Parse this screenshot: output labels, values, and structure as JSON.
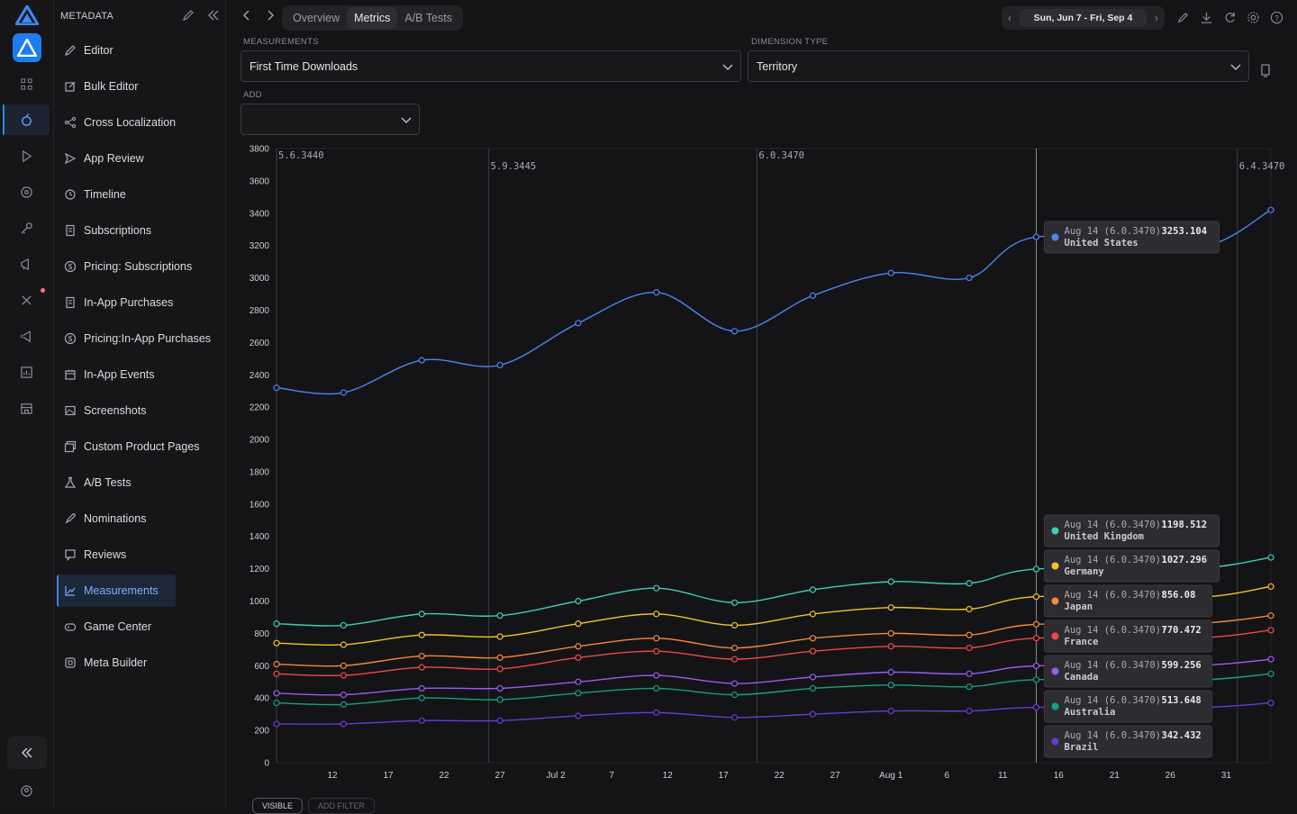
{
  "sidebar": {
    "title": "METADATA",
    "items": [
      {
        "label": "Editor",
        "icon": "pencil-icon"
      },
      {
        "label": "Bulk Editor",
        "icon": "edit-square-icon"
      },
      {
        "label": "Cross Localization",
        "icon": "share-icon"
      },
      {
        "label": "App Review",
        "icon": "send-icon"
      },
      {
        "label": "Timeline",
        "icon": "history-icon"
      },
      {
        "label": "Subscriptions",
        "icon": "receipt-icon"
      },
      {
        "label": "Pricing: Subscriptions",
        "icon": "dollar-icon"
      },
      {
        "label": "In-App Purchases",
        "icon": "receipt-icon"
      },
      {
        "label": "Pricing:In-App Purchases",
        "icon": "dollar-icon"
      },
      {
        "label": "In-App Events",
        "icon": "calendar-icon"
      },
      {
        "label": "Screenshots",
        "icon": "image-icon"
      },
      {
        "label": "Custom Product Pages",
        "icon": "images-icon"
      },
      {
        "label": "A/B Tests",
        "icon": "flask-icon"
      },
      {
        "label": "Nominations",
        "icon": "rocket-icon"
      },
      {
        "label": "Reviews",
        "icon": "review-icon"
      },
      {
        "label": "Measurements",
        "icon": "chart-icon",
        "active": true
      },
      {
        "label": "Game Center",
        "icon": "gamepad-icon"
      },
      {
        "label": "Meta Builder",
        "icon": "cube-icon"
      }
    ]
  },
  "topbar": {
    "tabs": [
      {
        "label": "Overview"
      },
      {
        "label": "Metrics",
        "active": true
      },
      {
        "label": "A/B Tests"
      }
    ],
    "date_range": "Sun, Jun 7 - Fri, Sep 4"
  },
  "filters": {
    "measurements_label": "MEASUREMENTS",
    "measurements_value": "First Time Downloads",
    "dimension_label": "DIMENSION TYPE",
    "dimension_value": "Territory",
    "add_label": "ADD",
    "add_value": ""
  },
  "bottom": {
    "visible_label": "VISIBLE",
    "add_filter_label": "ADD FILTER"
  },
  "chart_data": {
    "type": "line",
    "ylim": [
      0,
      3800
    ],
    "yticks": [
      0,
      200,
      400,
      600,
      800,
      1000,
      1200,
      1400,
      1600,
      1800,
      2000,
      2200,
      2400,
      2600,
      2800,
      3000,
      3200,
      3400,
      3600,
      3800
    ],
    "x_start": "Jun 7",
    "x_end": "Sep 4",
    "x_tick_labels": [
      "12",
      "17",
      "22",
      "27",
      "Jul 2",
      "7",
      "12",
      "17",
      "22",
      "27",
      "Aug 1",
      "6",
      "11",
      "16",
      "21",
      "26",
      "31"
    ],
    "versions": [
      {
        "label": "5.6.3440",
        "date": "Jun 7"
      },
      {
        "label": "5.9.3445",
        "date": "Jun 26"
      },
      {
        "label": "6.0.3470",
        "date": "Jul 20"
      },
      {
        "label": "6.4.3470",
        "date": "Sep 1"
      }
    ],
    "hover_date": "Aug 14",
    "hover_label": "Aug 14 (6.0.3470):",
    "point_dates": [
      "Jun 7",
      "Jun 13",
      "Jun 20",
      "Jun 27",
      "Jul 4",
      "Jul 11",
      "Jul 18",
      "Jul 25",
      "Aug 1",
      "Aug 8",
      "Aug 14",
      "Aug 28",
      "Sep 4"
    ],
    "series": [
      {
        "name": "United States",
        "color": "#4a86f0",
        "values": [
          2320,
          2290,
          2490,
          2460,
          2720,
          2910,
          2670,
          2890,
          3030,
          3000,
          3253.104,
          3180,
          3420
        ],
        "tooltip": "3253.104"
      },
      {
        "name": "United Kingdom",
        "color": "#3ccfb8",
        "values": [
          860,
          850,
          920,
          910,
          1000,
          1080,
          990,
          1070,
          1120,
          1110,
          1198.512,
          1200,
          1270
        ],
        "tooltip": "1198.512"
      },
      {
        "name": "Germany",
        "color": "#f5c228",
        "values": [
          740,
          730,
          790,
          780,
          860,
          920,
          850,
          920,
          960,
          950,
          1027.296,
          1020,
          1090
        ],
        "tooltip": "1027.296"
      },
      {
        "name": "Japan",
        "color": "#f58a3a",
        "values": [
          610,
          600,
          660,
          650,
          720,
          770,
          710,
          770,
          800,
          790,
          856.08,
          860,
          910
        ],
        "tooltip": "856.08"
      },
      {
        "name": "France",
        "color": "#f04848",
        "values": [
          550,
          540,
          590,
          580,
          650,
          690,
          640,
          690,
          720,
          710,
          770.472,
          770,
          820
        ],
        "tooltip": "770.472"
      },
      {
        "name": "Canada",
        "color": "#9a5cf2",
        "values": [
          430,
          420,
          460,
          460,
          500,
          540,
          490,
          530,
          560,
          550,
          599.256,
          600,
          640
        ],
        "tooltip": "599.256"
      },
      {
        "name": "Australia",
        "color": "#15a087",
        "values": [
          370,
          360,
          400,
          390,
          430,
          460,
          420,
          460,
          480,
          470,
          513.648,
          510,
          550
        ],
        "tooltip": "513.648"
      },
      {
        "name": "Brazil",
        "color": "#6a3ad8",
        "values": [
          240,
          240,
          260,
          260,
          290,
          310,
          280,
          300,
          320,
          320,
          342.432,
          340,
          370
        ],
        "tooltip": "342.432"
      }
    ]
  }
}
